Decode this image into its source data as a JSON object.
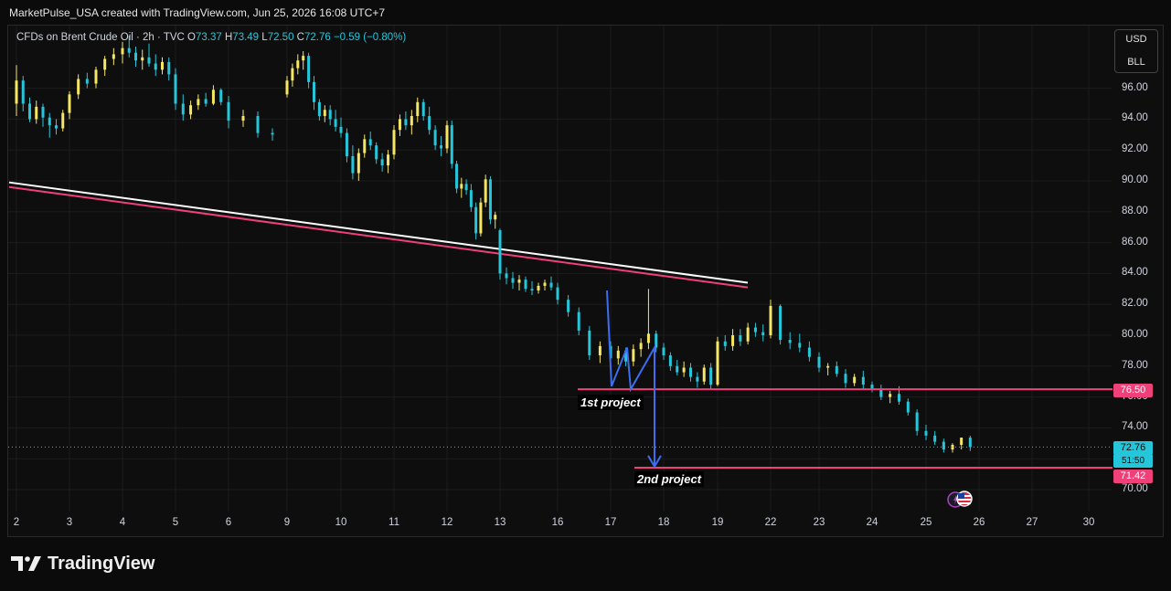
{
  "credit": "MarketPulse_USA created with TradingView.com, Jun 25, 2026 16:08 UTC+7",
  "legend": {
    "symbol": "CFDs on Brent Crude Oil · 2h · TVC",
    "open_label": "O",
    "open": "73.37",
    "high_label": "H",
    "high": "73.49",
    "low_label": "L",
    "low": "72.50",
    "close_label": "C",
    "close": "72.76",
    "change": "−0.59 (−0.80%)"
  },
  "currency": {
    "unit": "USD",
    "sub": "BLL"
  },
  "price_tags": {
    "level_top": "76.50",
    "last_price": "72.76",
    "countdown": "51:50",
    "level_bottom": "71.42"
  },
  "annotations": {
    "first": "1st project",
    "second": "2nd project"
  },
  "branding": {
    "logo_text": "TradingView"
  },
  "colors": {
    "up": "#f5e663",
    "down": "#26c6da",
    "level": "#f0407a",
    "trend_white": "#ffffff",
    "trend_pink": "#f0407a",
    "projection": "#3d6df0",
    "bg": "#0e0e0e"
  },
  "icons": {
    "logo": "tradingview-logo-icon",
    "flag": "us-flag-icon",
    "event": "lightning-icon"
  },
  "chart_data": {
    "type": "candlestick",
    "x_tick_labels": [
      "2",
      "3",
      "4",
      "5",
      "6",
      "9",
      "10",
      "11",
      "12",
      "13",
      "16",
      "17",
      "18",
      "19",
      "22",
      "23",
      "24",
      "25",
      "26",
      "27",
      "30"
    ],
    "y_tick_labels": [
      "70.00",
      "72.00",
      "74.00",
      "76.00",
      "78.00",
      "80.00",
      "82.00",
      "84.00",
      "86.00",
      "88.00",
      "90.00",
      "92.00",
      "94.00",
      "96.00"
    ],
    "ylim": [
      69.0,
      98.5
    ],
    "horizontal_levels": [
      76.5,
      71.42
    ],
    "last_price": 72.76,
    "trendlines": [
      {
        "color": "white",
        "from": {
          "day": "2",
          "price": 89.9
        },
        "to": {
          "day": "19",
          "price": 83.4
        }
      },
      {
        "color": "pink",
        "from": {
          "day": "2",
          "price": 89.6
        },
        "to": {
          "day": "19",
          "price": 83.1
        }
      }
    ],
    "candles": [
      {
        "x": "2",
        "c": [
          [
            95.0,
            97.5,
            94.2,
            96.5
          ],
          [
            96.5,
            96.8,
            94.5,
            95.0
          ],
          [
            95.0,
            95.4,
            93.8,
            94.0
          ],
          [
            94.0,
            95.2,
            93.7,
            94.8
          ],
          [
            94.8,
            95.0,
            93.5,
            94.1
          ],
          [
            94.1,
            94.4,
            92.8,
            93.6
          ],
          [
            93.6,
            94.0,
            93.0,
            93.4
          ],
          [
            93.4,
            94.6,
            93.2,
            94.4
          ]
        ]
      },
      {
        "x": "3",
        "c": [
          [
            94.4,
            95.8,
            94.0,
            95.6
          ],
          [
            95.6,
            96.9,
            95.3,
            96.6
          ],
          [
            96.6,
            97.0,
            96.0,
            96.3
          ],
          [
            96.3,
            97.4,
            96.0,
            97.2
          ],
          [
            97.2,
            98.1,
            96.8,
            97.9
          ],
          [
            97.9,
            98.6,
            97.5,
            98.2
          ]
        ]
      },
      {
        "x": "4",
        "c": [
          [
            98.2,
            99.0,
            97.6,
            98.6
          ],
          [
            98.6,
            99.4,
            98.0,
            98.3
          ],
          [
            98.3,
            98.7,
            97.4,
            97.8
          ],
          [
            97.8,
            98.5,
            97.2,
            98.0
          ],
          [
            98.0,
            98.9,
            97.4,
            97.6
          ],
          [
            97.6,
            98.2,
            96.8,
            97.2
          ],
          [
            97.2,
            98.0,
            96.9,
            97.7
          ],
          [
            97.7,
            98.0,
            96.5,
            96.9
          ]
        ]
      },
      {
        "x": "5",
        "c": [
          [
            96.9,
            97.3,
            94.6,
            95.0
          ],
          [
            95.0,
            95.6,
            93.9,
            94.3
          ],
          [
            94.3,
            95.2,
            94.0,
            94.9
          ],
          [
            94.9,
            95.6,
            94.6,
            95.3
          ],
          [
            95.3,
            95.7,
            94.8,
            95.0
          ],
          [
            95.0,
            96.2,
            94.9,
            95.9
          ],
          [
            95.9,
            96.0,
            94.9,
            95.1
          ]
        ]
      },
      {
        "x": "6",
        "c": [
          [
            95.1,
            95.5,
            93.4,
            93.9
          ],
          [
            93.9,
            94.6,
            93.5,
            94.2
          ],
          [
            94.2,
            94.5,
            92.8,
            93.1
          ],
          [
            93.1,
            93.4,
            92.6,
            93.0
          ]
        ]
      },
      {
        "x": "9",
        "c": [
          [
            95.6,
            96.8,
            95.4,
            96.5
          ],
          [
            96.5,
            97.6,
            96.1,
            97.3
          ],
          [
            97.3,
            98.2,
            96.9,
            97.8
          ],
          [
            97.8,
            98.4,
            97.2,
            98.1
          ],
          [
            98.1,
            98.3,
            96.0,
            96.4
          ],
          [
            96.4,
            96.8,
            94.6,
            95.1
          ],
          [
            95.1,
            95.3,
            93.9,
            94.2
          ],
          [
            94.2,
            94.9,
            93.8,
            94.6
          ],
          [
            94.6,
            94.9,
            93.6,
            94.0
          ],
          [
            94.0,
            94.6,
            93.2,
            93.5
          ]
        ]
      },
      {
        "x": "10",
        "c": [
          [
            93.5,
            94.1,
            92.8,
            93.1
          ],
          [
            93.1,
            93.4,
            91.2,
            91.6
          ],
          [
            91.6,
            92.3,
            90.1,
            90.5
          ],
          [
            90.5,
            92.1,
            90.0,
            91.8
          ],
          [
            91.8,
            93.0,
            91.5,
            92.7
          ],
          [
            92.7,
            93.2,
            92.0,
            92.3
          ],
          [
            92.3,
            92.5,
            91.1,
            91.4
          ],
          [
            91.4,
            91.8,
            90.6,
            91.0
          ],
          [
            91.0,
            92.0,
            90.5,
            91.7
          ]
        ]
      },
      {
        "x": "11",
        "c": [
          [
            91.7,
            93.6,
            91.4,
            93.3
          ],
          [
            93.3,
            94.3,
            92.9,
            94.0
          ],
          [
            94.0,
            94.5,
            93.3,
            93.6
          ],
          [
            93.6,
            94.6,
            93.0,
            94.2
          ],
          [
            94.2,
            95.4,
            93.8,
            95.1
          ],
          [
            95.1,
            95.3,
            93.9,
            94.2
          ],
          [
            94.2,
            94.8,
            93.0,
            93.3
          ],
          [
            93.3,
            93.6,
            92.0,
            92.3
          ],
          [
            92.3,
            92.9,
            91.6,
            92.1
          ]
        ]
      },
      {
        "x": "12",
        "c": [
          [
            92.1,
            93.9,
            91.8,
            93.6
          ],
          [
            93.6,
            93.9,
            90.8,
            91.1
          ],
          [
            91.1,
            91.3,
            89.2,
            89.5
          ],
          [
            89.5,
            90.2,
            88.9,
            89.8
          ],
          [
            89.8,
            90.1,
            89.1,
            89.4
          ],
          [
            89.4,
            89.8,
            88.0,
            88.3
          ],
          [
            88.3,
            88.6,
            86.2,
            86.6
          ],
          [
            86.6,
            88.9,
            86.4,
            88.6
          ],
          [
            88.6,
            90.4,
            88.3,
            90.1
          ],
          [
            90.1,
            90.3,
            87.2,
            87.5
          ],
          [
            87.5,
            88.0,
            86.9,
            87.8
          ]
        ]
      },
      {
        "x": "13",
        "c": [
          [
            86.8,
            86.9,
            83.6,
            84.0
          ],
          [
            84.0,
            84.4,
            83.3,
            83.7
          ],
          [
            83.7,
            84.1,
            83.0,
            83.4
          ],
          [
            83.4,
            83.9,
            82.9,
            83.6
          ],
          [
            83.6,
            83.8,
            82.8,
            83.0
          ],
          [
            83.0,
            83.5,
            82.6,
            82.9
          ],
          [
            82.9,
            83.4,
            82.7,
            83.2
          ],
          [
            83.2,
            83.6,
            82.9,
            83.4
          ],
          [
            83.4,
            83.8,
            82.9,
            83.1
          ]
        ]
      },
      {
        "x": "16",
        "c": [
          [
            83.1,
            83.4,
            82.0,
            82.3
          ],
          [
            82.3,
            82.6,
            81.2,
            81.5
          ],
          [
            81.5,
            81.8,
            80.0,
            80.3
          ],
          [
            80.3,
            80.6,
            78.4,
            78.7
          ],
          [
            78.7,
            79.6,
            78.2,
            79.3
          ]
        ]
      },
      {
        "x": "17",
        "c": [
          [
            79.3,
            79.6,
            78.2,
            78.5
          ],
          [
            78.5,
            79.3,
            78.1,
            79.0
          ],
          [
            79.0,
            79.2,
            78.0,
            78.3
          ],
          [
            78.3,
            79.4,
            78.0,
            79.1
          ],
          [
            79.1,
            79.8,
            78.6,
            79.5
          ],
          [
            79.5,
            83.0,
            79.1,
            80.1
          ],
          [
            80.1,
            80.3,
            78.9,
            79.2
          ]
        ]
      },
      {
        "x": "18",
        "c": [
          [
            79.2,
            79.5,
            78.4,
            78.7
          ],
          [
            78.7,
            78.9,
            77.7,
            78.0
          ],
          [
            78.0,
            78.4,
            77.4,
            77.6
          ],
          [
            77.6,
            78.3,
            77.3,
            77.9
          ],
          [
            77.9,
            78.2,
            77.0,
            77.3
          ],
          [
            77.3,
            77.6,
            76.6,
            77.0
          ],
          [
            77.0,
            78.1,
            76.8,
            77.9
          ],
          [
            77.9,
            78.2,
            76.5,
            76.8
          ]
        ]
      },
      {
        "x": "19",
        "c": [
          [
            76.8,
            79.9,
            76.7,
            79.6
          ],
          [
            79.6,
            80.0,
            79.0,
            79.3
          ],
          [
            79.3,
            80.4,
            79.0,
            80.0
          ],
          [
            80.0,
            80.4,
            79.3,
            79.6
          ],
          [
            79.6,
            80.8,
            79.4,
            80.5
          ],
          [
            80.5,
            80.8,
            79.9,
            80.2
          ],
          [
            80.2,
            80.7,
            79.6,
            80.0
          ]
        ]
      },
      {
        "x": "22",
        "c": [
          [
            80.0,
            82.3,
            79.8,
            81.9
          ],
          [
            81.9,
            82.0,
            79.4,
            79.7
          ],
          [
            79.7,
            80.2,
            79.1,
            79.5
          ],
          [
            79.5,
            80.1,
            78.9,
            79.2
          ],
          [
            79.2,
            79.6,
            78.3,
            78.6
          ]
        ]
      },
      {
        "x": "23",
        "c": [
          [
            78.6,
            78.9,
            77.6,
            77.9
          ],
          [
            77.9,
            78.2,
            77.4,
            78.0
          ],
          [
            78.0,
            78.3,
            77.3,
            77.5
          ],
          [
            77.5,
            77.8,
            76.6,
            76.9
          ],
          [
            76.9,
            77.5,
            76.7,
            77.3
          ],
          [
            77.3,
            77.7,
            76.5,
            76.8
          ]
        ]
      },
      {
        "x": "24",
        "c": [
          [
            76.8,
            77.0,
            76.3,
            76.5
          ],
          [
            76.5,
            76.8,
            75.8,
            76.0
          ],
          [
            76.0,
            76.4,
            75.6,
            76.2
          ],
          [
            76.2,
            76.7,
            75.5,
            75.7
          ],
          [
            75.7,
            75.9,
            74.8,
            75.0
          ],
          [
            75.0,
            75.2,
            73.5,
            73.8
          ]
        ]
      },
      {
        "x": "25",
        "c": [
          [
            73.8,
            74.2,
            73.2,
            73.5
          ],
          [
            73.5,
            73.8,
            72.9,
            73.1
          ],
          [
            73.1,
            73.3,
            72.4,
            72.6
          ],
          [
            72.6,
            73.0,
            72.4,
            72.9
          ],
          [
            72.9,
            73.3,
            72.6,
            73.37
          ],
          [
            73.37,
            73.49,
            72.5,
            72.76
          ]
        ]
      }
    ]
  }
}
